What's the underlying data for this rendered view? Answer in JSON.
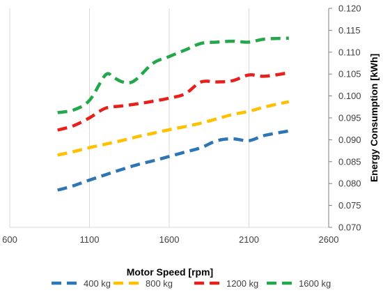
{
  "chart_data": {
    "type": "line",
    "title": "",
    "xlabel": "Motor Speed [rpm]",
    "ylabel": "Energy Consumption [kWh]",
    "xlim": [
      600,
      2600
    ],
    "ylim": [
      0.07,
      0.12
    ],
    "x_ticks": [
      "600",
      "1100",
      "1600",
      "2100",
      "2600"
    ],
    "y_ticks": [
      "0.070",
      "0.075",
      "0.080",
      "0.085",
      "0.090",
      "0.095",
      "0.100",
      "0.105",
      "0.110",
      "0.115",
      "0.120"
    ],
    "y_axis_side": "right",
    "grid": "vertical",
    "legend_position": "bottom",
    "line_style": "dashed",
    "series": [
      {
        "name": "400 kg",
        "color": "#2E75B6",
        "x": [
          900,
          1000,
          1100,
          1200,
          1300,
          1400,
          1500,
          1600,
          1700,
          1800,
          1900,
          2000,
          2100,
          2200,
          2350
        ],
        "y": [
          0.0785,
          0.0795,
          0.0808,
          0.082,
          0.0832,
          0.0843,
          0.0852,
          0.0862,
          0.0872,
          0.0882,
          0.0898,
          0.0902,
          0.0898,
          0.091,
          0.092
        ]
      },
      {
        "name": "800 kg",
        "color": "#FFC000",
        "x": [
          900,
          1000,
          1100,
          1200,
          1300,
          1400,
          1500,
          1600,
          1700,
          1800,
          1900,
          2000,
          2100,
          2200,
          2350
        ],
        "y": [
          0.0865,
          0.0873,
          0.0882,
          0.089,
          0.0898,
          0.0907,
          0.0915,
          0.0923,
          0.093,
          0.0938,
          0.0948,
          0.0958,
          0.0965,
          0.0975,
          0.0987
        ]
      },
      {
        "name": "1200 kg",
        "color": "#E8201C",
        "x": [
          900,
          1000,
          1100,
          1200,
          1300,
          1400,
          1500,
          1600,
          1700,
          1800,
          1900,
          2000,
          2100,
          2200,
          2350
        ],
        "y": [
          0.0922,
          0.0932,
          0.095,
          0.0972,
          0.0977,
          0.0982,
          0.0988,
          0.0995,
          0.1005,
          0.1032,
          0.1032,
          0.1035,
          0.1048,
          0.1045,
          0.1053
        ]
      },
      {
        "name": "1600 kg",
        "color": "#22A84A",
        "x": [
          900,
          1000,
          1100,
          1200,
          1250,
          1300,
          1350,
          1400,
          1500,
          1600,
          1700,
          1800,
          1900,
          2000,
          2100,
          2200,
          2350
        ],
        "y": [
          0.0962,
          0.0968,
          0.099,
          0.1048,
          0.1042,
          0.1033,
          0.103,
          0.104,
          0.1075,
          0.109,
          0.1105,
          0.112,
          0.1123,
          0.1125,
          0.1123,
          0.113,
          0.1132
        ]
      }
    ]
  }
}
